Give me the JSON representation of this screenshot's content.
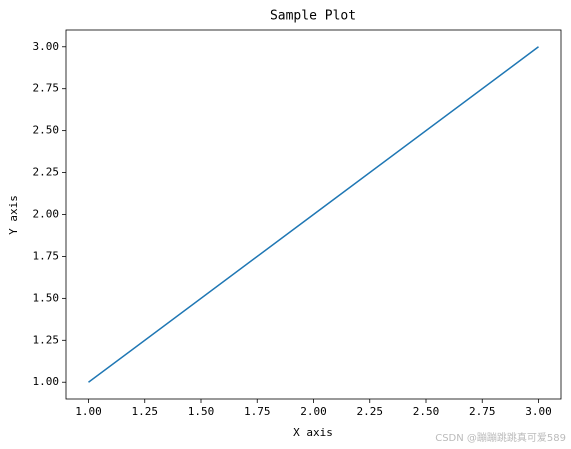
{
  "chart_data": {
    "type": "line",
    "title": "Sample Plot",
    "xlabel": "X axis",
    "ylabel": "Y axis",
    "x": [
      1,
      2,
      3
    ],
    "series": [
      {
        "color": "#1f77b4",
        "values": [
          1,
          2,
          3
        ]
      }
    ],
    "xlim": [
      0.9,
      3.1
    ],
    "ylim": [
      0.9,
      3.1
    ],
    "xticks": [
      {
        "value": 1,
        "label": "1.00"
      },
      {
        "value": 1.25,
        "label": "1.25"
      },
      {
        "value": 1.5,
        "label": "1.50"
      },
      {
        "value": 1.75,
        "label": "1.75"
      },
      {
        "value": 2,
        "label": "2.00"
      },
      {
        "value": 2.25,
        "label": "2.25"
      },
      {
        "value": 2.5,
        "label": "2.50"
      },
      {
        "value": 2.75,
        "label": "2.75"
      },
      {
        "value": 3,
        "label": "3.00"
      }
    ],
    "yticks": [
      {
        "value": 1,
        "label": "1.00"
      },
      {
        "value": 1.25,
        "label": "1.25"
      },
      {
        "value": 1.5,
        "label": "1.50"
      },
      {
        "value": 1.75,
        "label": "1.75"
      },
      {
        "value": 2,
        "label": "2.00"
      },
      {
        "value": 2.25,
        "label": "2.25"
      },
      {
        "value": 2.5,
        "label": "2.50"
      },
      {
        "value": 2.75,
        "label": "2.75"
      },
      {
        "value": 3,
        "label": "3.00"
      }
    ],
    "grid": false,
    "watermark": "CSDN @蹦蹦跳跳真可爱589"
  }
}
